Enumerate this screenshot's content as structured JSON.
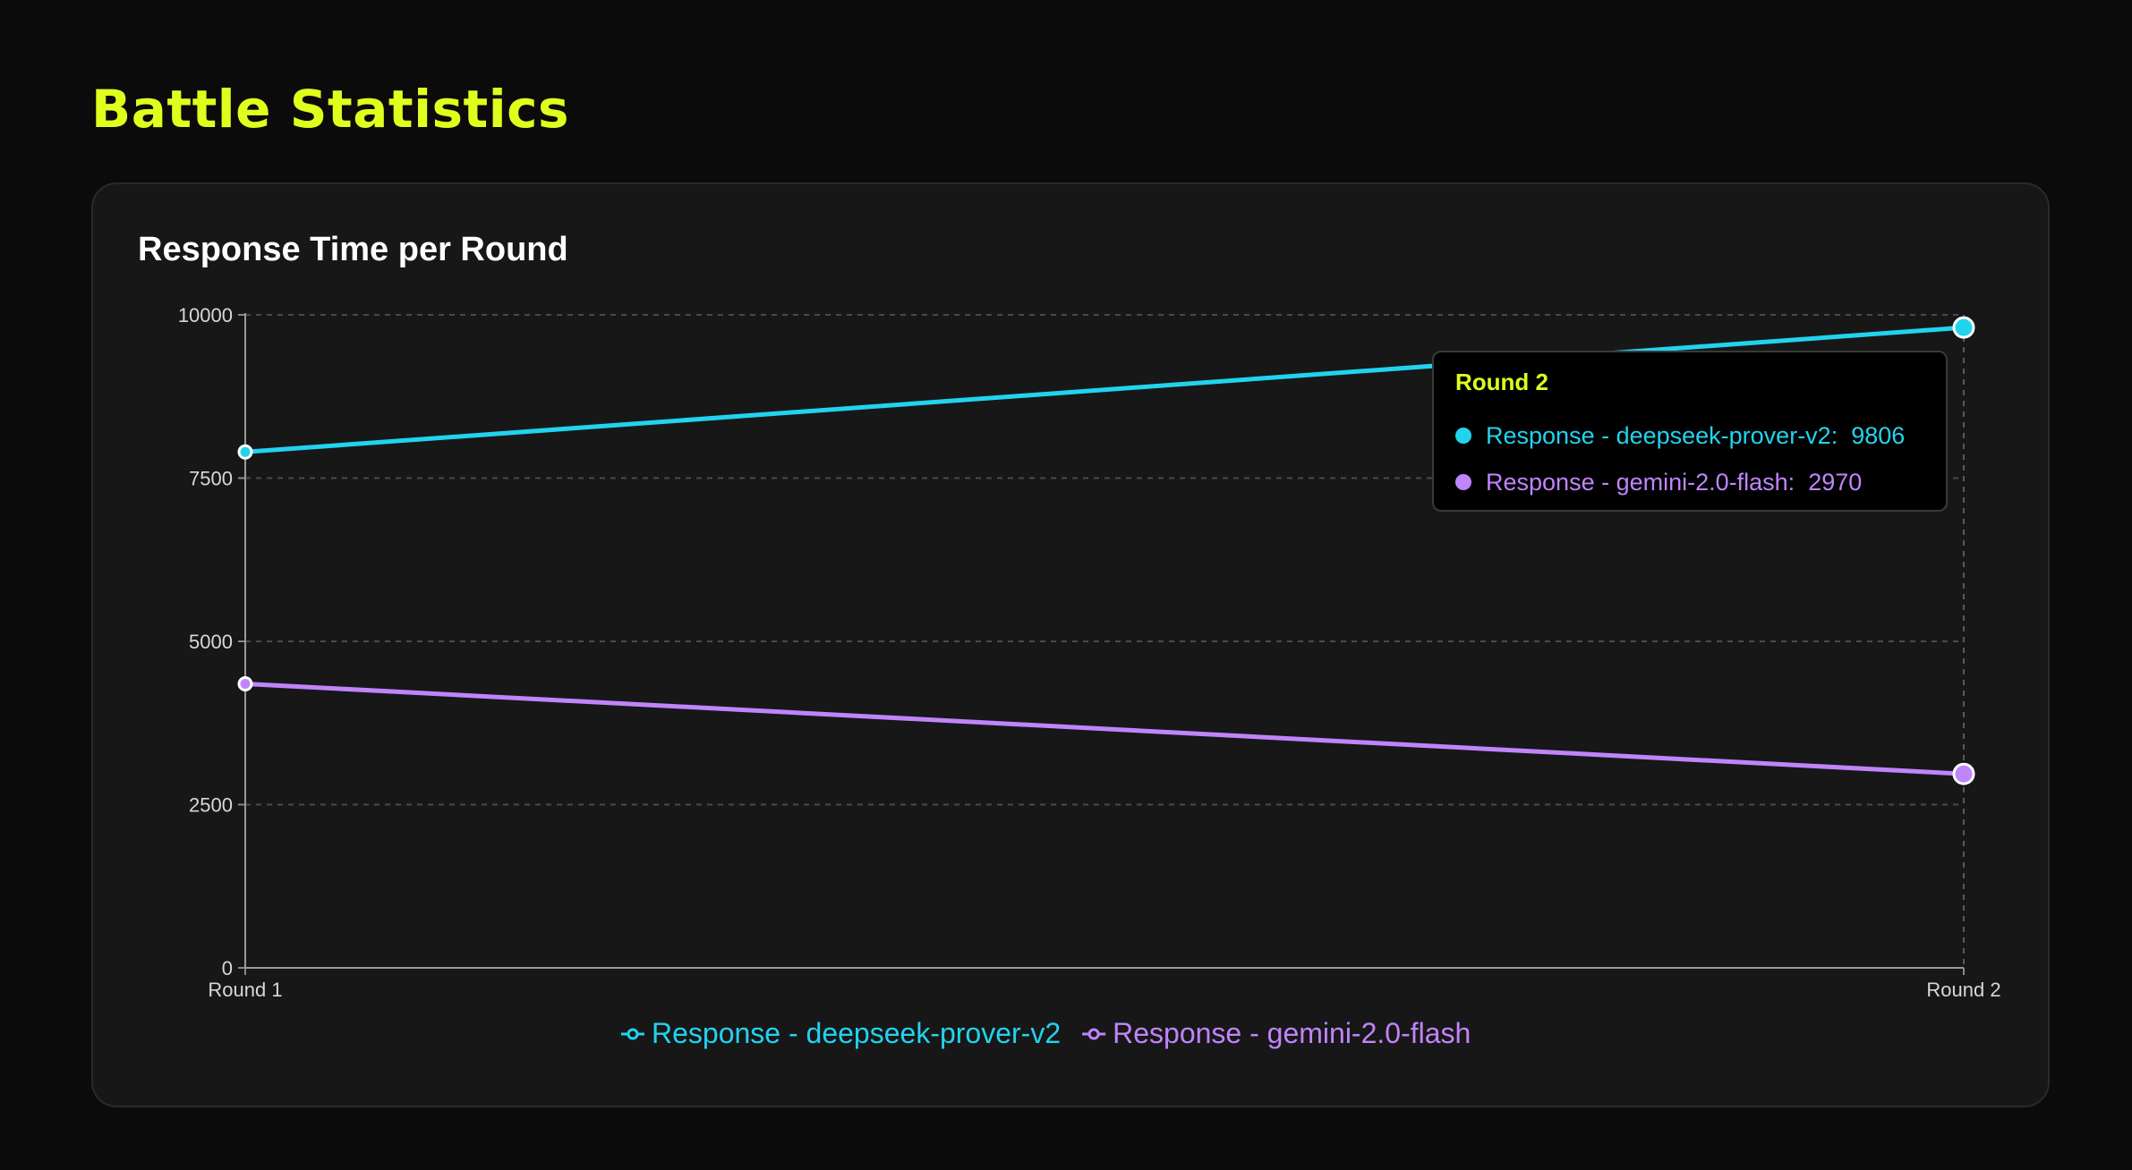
{
  "page": {
    "title": "Battle Statistics"
  },
  "colors": {
    "accent": "#dfff1c",
    "series_1": "#22d3ee",
    "series_2": "#c084fc",
    "background": "#0b0b0b",
    "card": "#171717"
  },
  "chart_data": {
    "type": "line",
    "title": "Response Time per Round",
    "xlabel": "",
    "ylabel": "",
    "categories": [
      "Round 1",
      "Round 2"
    ],
    "ylim": [
      0,
      10000
    ],
    "yticks": [
      0,
      2500,
      5000,
      7500,
      10000
    ],
    "grid": true,
    "legend_position": "bottom",
    "series": [
      {
        "name": "Response - deepseek-prover-v2",
        "values": [
          7900,
          9806
        ],
        "color": "#22d3ee"
      },
      {
        "name": "Response - gemini-2.0-flash",
        "values": [
          4350,
          2970
        ],
        "color": "#c084fc"
      }
    ]
  },
  "tooltip": {
    "title": "Round 2",
    "rows": [
      {
        "label": "Response - deepseek-prover-v2",
        "value": "9806",
        "color": "#22d3ee"
      },
      {
        "label": "Response - gemini-2.0-flash",
        "value": "2970",
        "color": "#c084fc"
      }
    ]
  }
}
